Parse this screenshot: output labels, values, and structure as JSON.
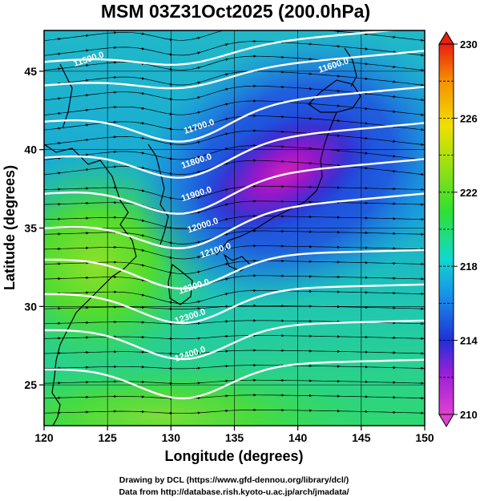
{
  "title": "MSM 03Z31Oct2025 (200.0hPa)",
  "x_axis": {
    "label": "Longitude (degrees)",
    "range": [
      120,
      150
    ],
    "ticks": [
      120,
      125,
      130,
      135,
      140,
      145,
      150
    ]
  },
  "y_axis": {
    "label": "Latitude  (degrees)",
    "range": [
      22.4,
      47.6
    ],
    "ticks": [
      25,
      30,
      35,
      40,
      45
    ]
  },
  "colorbar": {
    "range": [
      210,
      230
    ],
    "ticks": [
      210,
      214,
      218,
      222,
      226,
      230
    ],
    "colors": [
      "#e040d0",
      "#8a20d8",
      "#2030d8",
      "#1890e8",
      "#10d8d0",
      "#30e030",
      "#a0e010",
      "#f0e000",
      "#f89000",
      "#e82010"
    ]
  },
  "contours": [
    {
      "label": "11500.0",
      "lon": 123.5,
      "lat": 45.8
    },
    {
      "label": "11600.0",
      "lon": 142.8,
      "lat": 45.4
    },
    {
      "label": "11700.0",
      "lon": 132.2,
      "lat": 41.5
    },
    {
      "label": "11800.0",
      "lon": 132.0,
      "lat": 39.3
    },
    {
      "label": "11900.0",
      "lon": 132.0,
      "lat": 37.2
    },
    {
      "label": "12000.0",
      "lon": 132.5,
      "lat": 35.2
    },
    {
      "label": "12100.0",
      "lon": 133.5,
      "lat": 33.6
    },
    {
      "label": "12200.0",
      "lon": 131.8,
      "lat": 31.3
    },
    {
      "label": "12300.0",
      "lon": 131.5,
      "lat": 29.4
    },
    {
      "label": "12400.0",
      "lon": 131.5,
      "lat": 27.0
    }
  ],
  "credits": {
    "line1": "Drawing by DCL (https://www.gfd-dennou.org/library/dcl/)",
    "line2": "Data from http://database.rish.kyoto-u.ac.jp/arch/jmadata/"
  }
}
